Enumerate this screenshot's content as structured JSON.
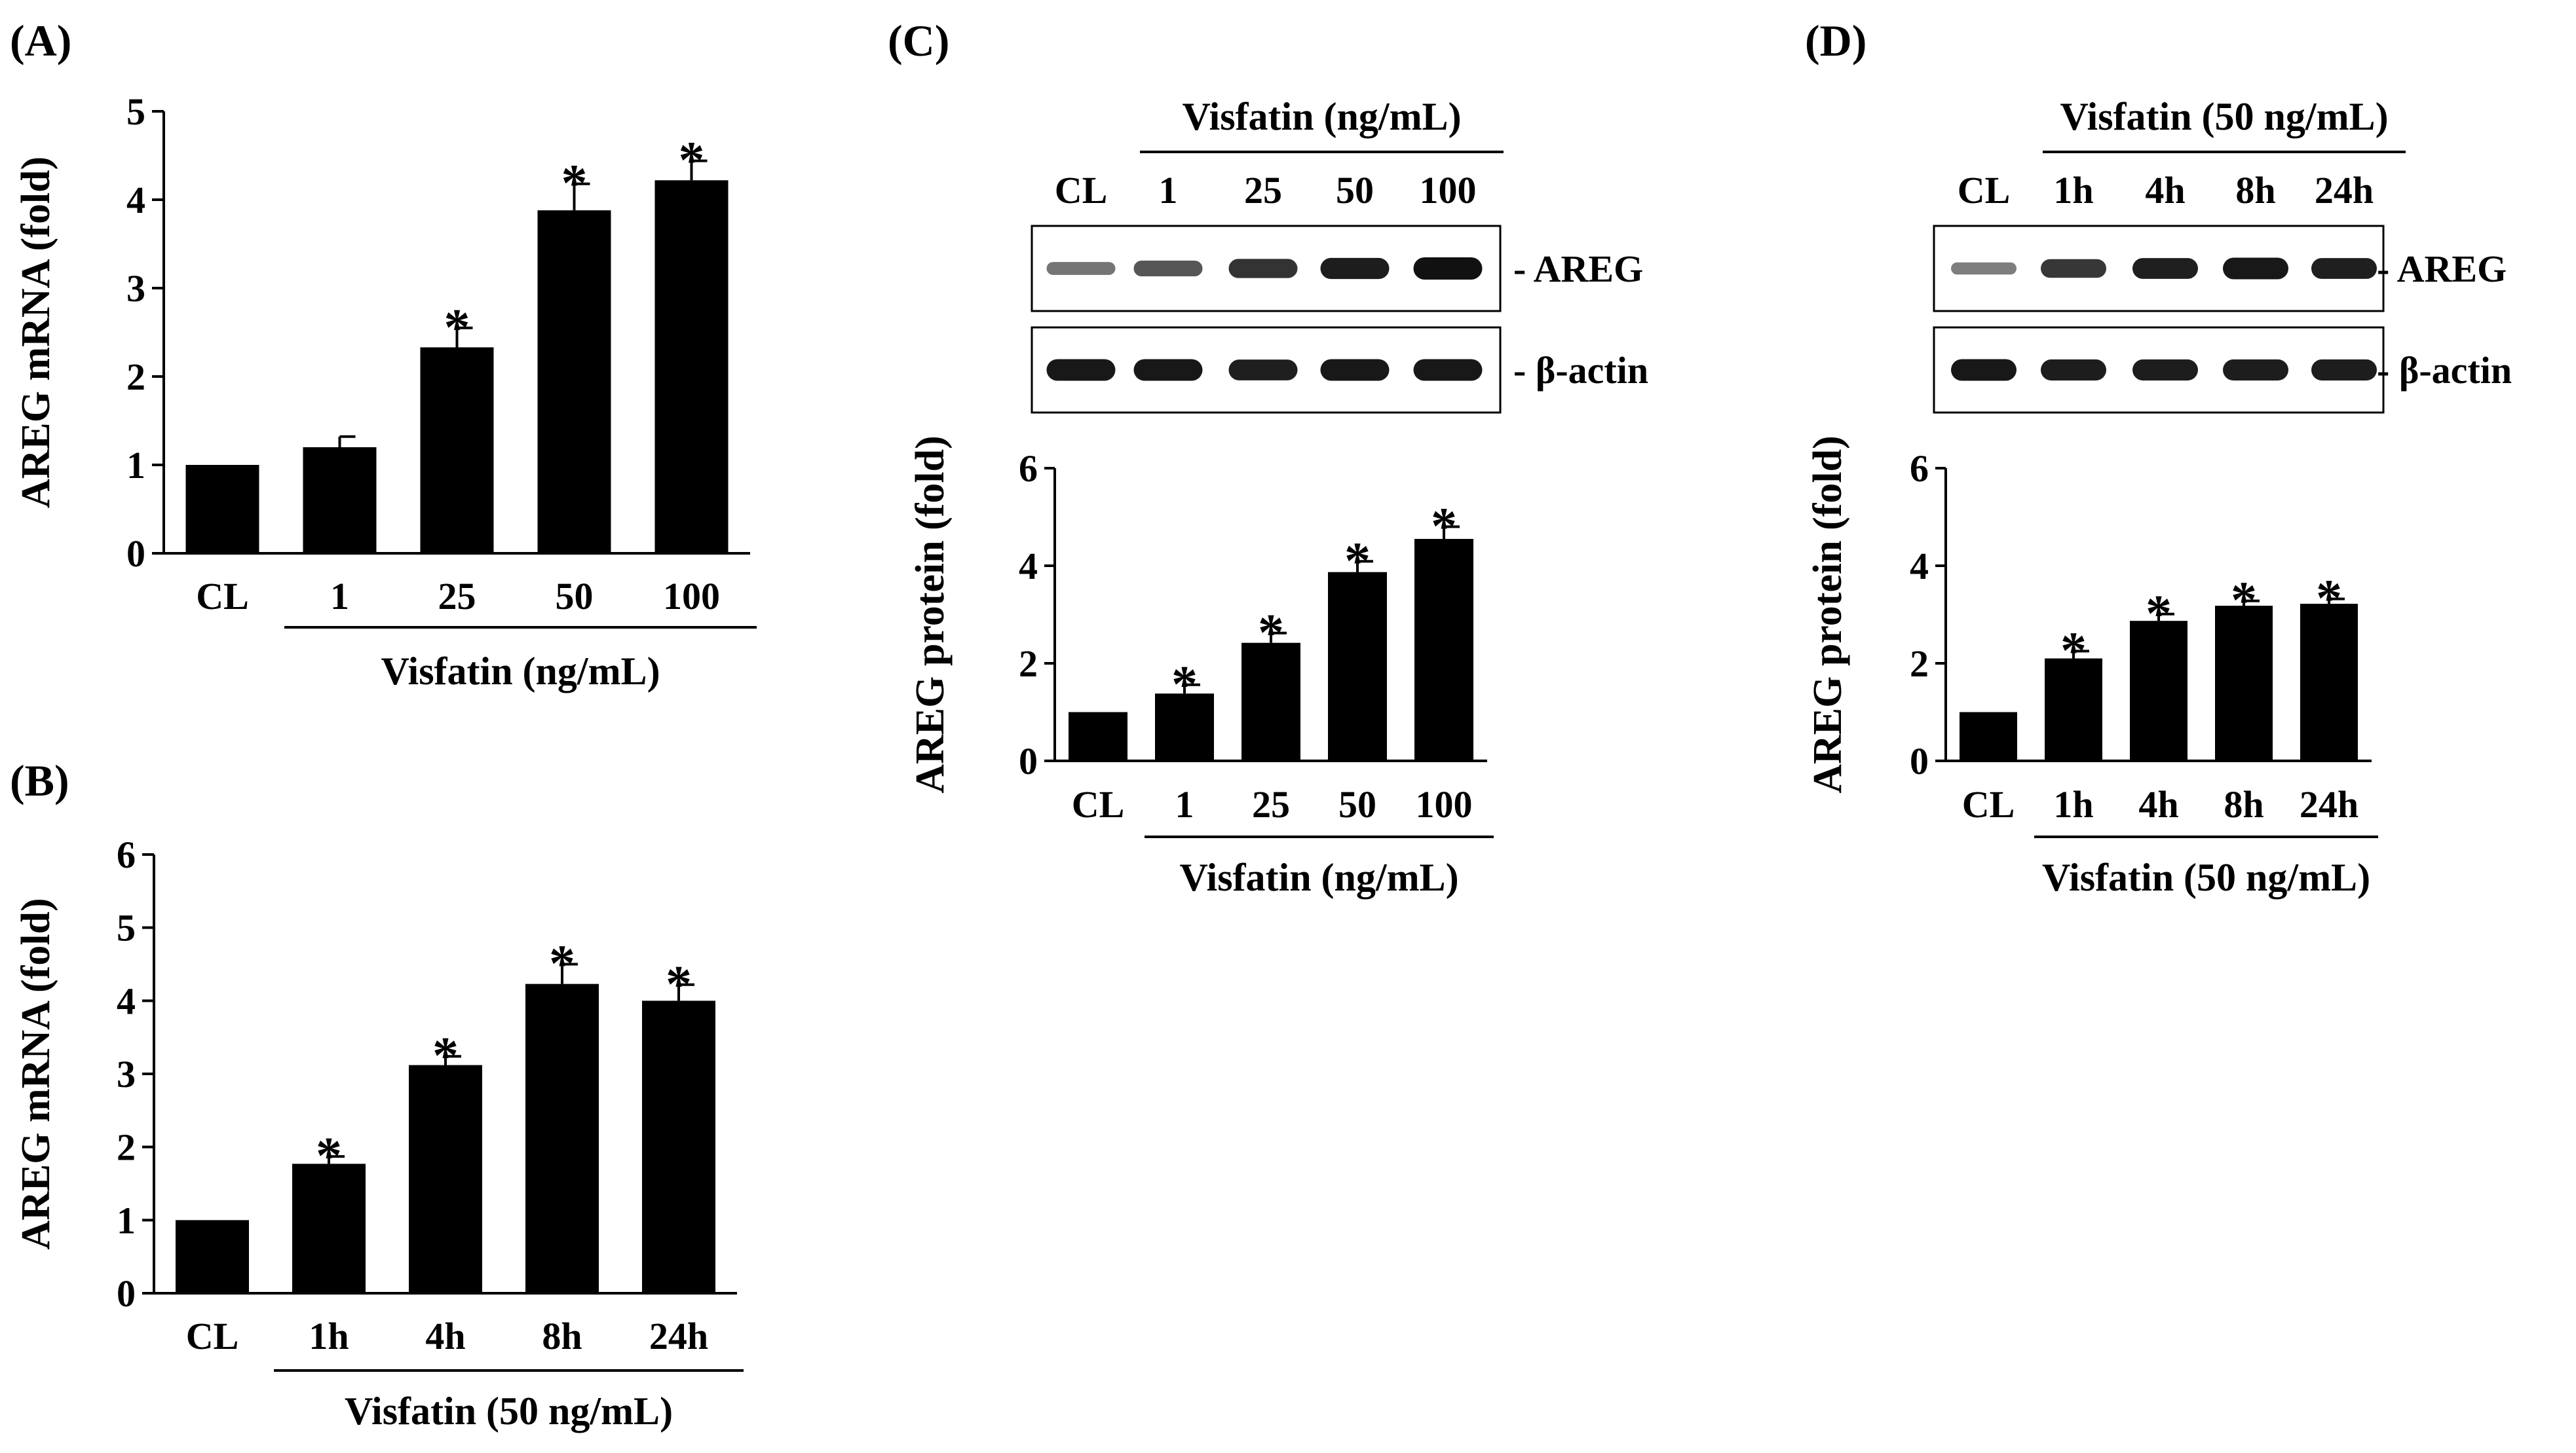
{
  "figure": {
    "panel_labels": [
      "(A)",
      "(B)",
      "(C)",
      "(D)"
    ],
    "colors": {
      "bar": "#000000",
      "background": "#ffffff",
      "band": "#111111"
    }
  },
  "chart_data": [
    {
      "panel": "(A)",
      "type": "bar",
      "categories": [
        "CL",
        "1",
        "25",
        "50",
        "100"
      ],
      "values": [
        1.0,
        1.2,
        2.33,
        3.88,
        4.22
      ],
      "errors": [
        0,
        0.12,
        0.22,
        0.3,
        0.22
      ],
      "significance": [
        "",
        "",
        "*",
        "*",
        "*"
      ],
      "ylabel": "AREG mRNA (fold)",
      "group_label": "Visfatin (ng/mL)",
      "ylim": [
        0,
        5
      ],
      "yticks": [
        0,
        1,
        2,
        3,
        4,
        5
      ]
    },
    {
      "panel": "(B)",
      "type": "bar",
      "categories": [
        "CL",
        "1h",
        "4h",
        "8h",
        "24h"
      ],
      "values": [
        1.0,
        1.77,
        3.12,
        4.23,
        4.0
      ],
      "errors": [
        0,
        0.1,
        0.12,
        0.27,
        0.22
      ],
      "significance": [
        "",
        "*",
        "*",
        "*",
        "*"
      ],
      "ylabel": "AREG mRNA (fold)",
      "group_label": "Visfatin (50 ng/mL)",
      "ylim": [
        0,
        6
      ],
      "yticks": [
        0,
        1,
        2,
        3,
        4,
        5,
        6
      ]
    },
    {
      "panel": "(C)",
      "type": "bar",
      "categories": [
        "CL",
        "1",
        "25",
        "50",
        "100"
      ],
      "values": [
        1.0,
        1.38,
        2.42,
        3.87,
        4.55
      ],
      "errors": [
        0,
        0.18,
        0.2,
        0.22,
        0.25
      ],
      "significance": [
        "",
        "*",
        "*",
        "*",
        "*"
      ],
      "ylabel": "AREG protein (fold)",
      "group_label": "Visfatin (ng/mL)",
      "ylim": [
        0,
        6
      ],
      "yticks": [
        0,
        2,
        4,
        6
      ]
    },
    {
      "panel": "(D)",
      "type": "bar",
      "categories": [
        "CL",
        "1h",
        "4h",
        "8h",
        "24h"
      ],
      "values": [
        1.0,
        2.1,
        2.87,
        3.18,
        3.22
      ],
      "errors": [
        0,
        0.15,
        0.14,
        0.1,
        0.1
      ],
      "significance": [
        "",
        "*",
        "*",
        "*",
        "*"
      ],
      "ylabel": "AREG protein (fold)",
      "group_label": "Visfatin (50 ng/mL)",
      "ylim": [
        0,
        6
      ],
      "yticks": [
        0,
        2,
        4,
        6
      ]
    }
  ],
  "blots": [
    {
      "panel": "(C)",
      "header_label": "Visfatin (ng/mL)",
      "lanes": [
        "CL",
        "1",
        "25",
        "50",
        "100"
      ],
      "rows": [
        {
          "label": "- AREG",
          "intensity": [
            0.35,
            0.55,
            0.78,
            0.92,
            1.0
          ]
        },
        {
          "label": "- β-actin",
          "intensity": [
            0.95,
            0.95,
            0.9,
            0.95,
            0.95
          ]
        }
      ]
    },
    {
      "panel": "(D)",
      "header_label": "Visfatin (50 ng/mL)",
      "lanes": [
        "CL",
        "1h",
        "4h",
        "8h",
        "24h"
      ],
      "rows": [
        {
          "label": "- AREG",
          "intensity": [
            0.3,
            0.75,
            0.9,
            0.95,
            0.9
          ]
        },
        {
          "label": "- β-actin",
          "intensity": [
            0.95,
            0.92,
            0.92,
            0.92,
            0.92
          ]
        }
      ]
    }
  ]
}
